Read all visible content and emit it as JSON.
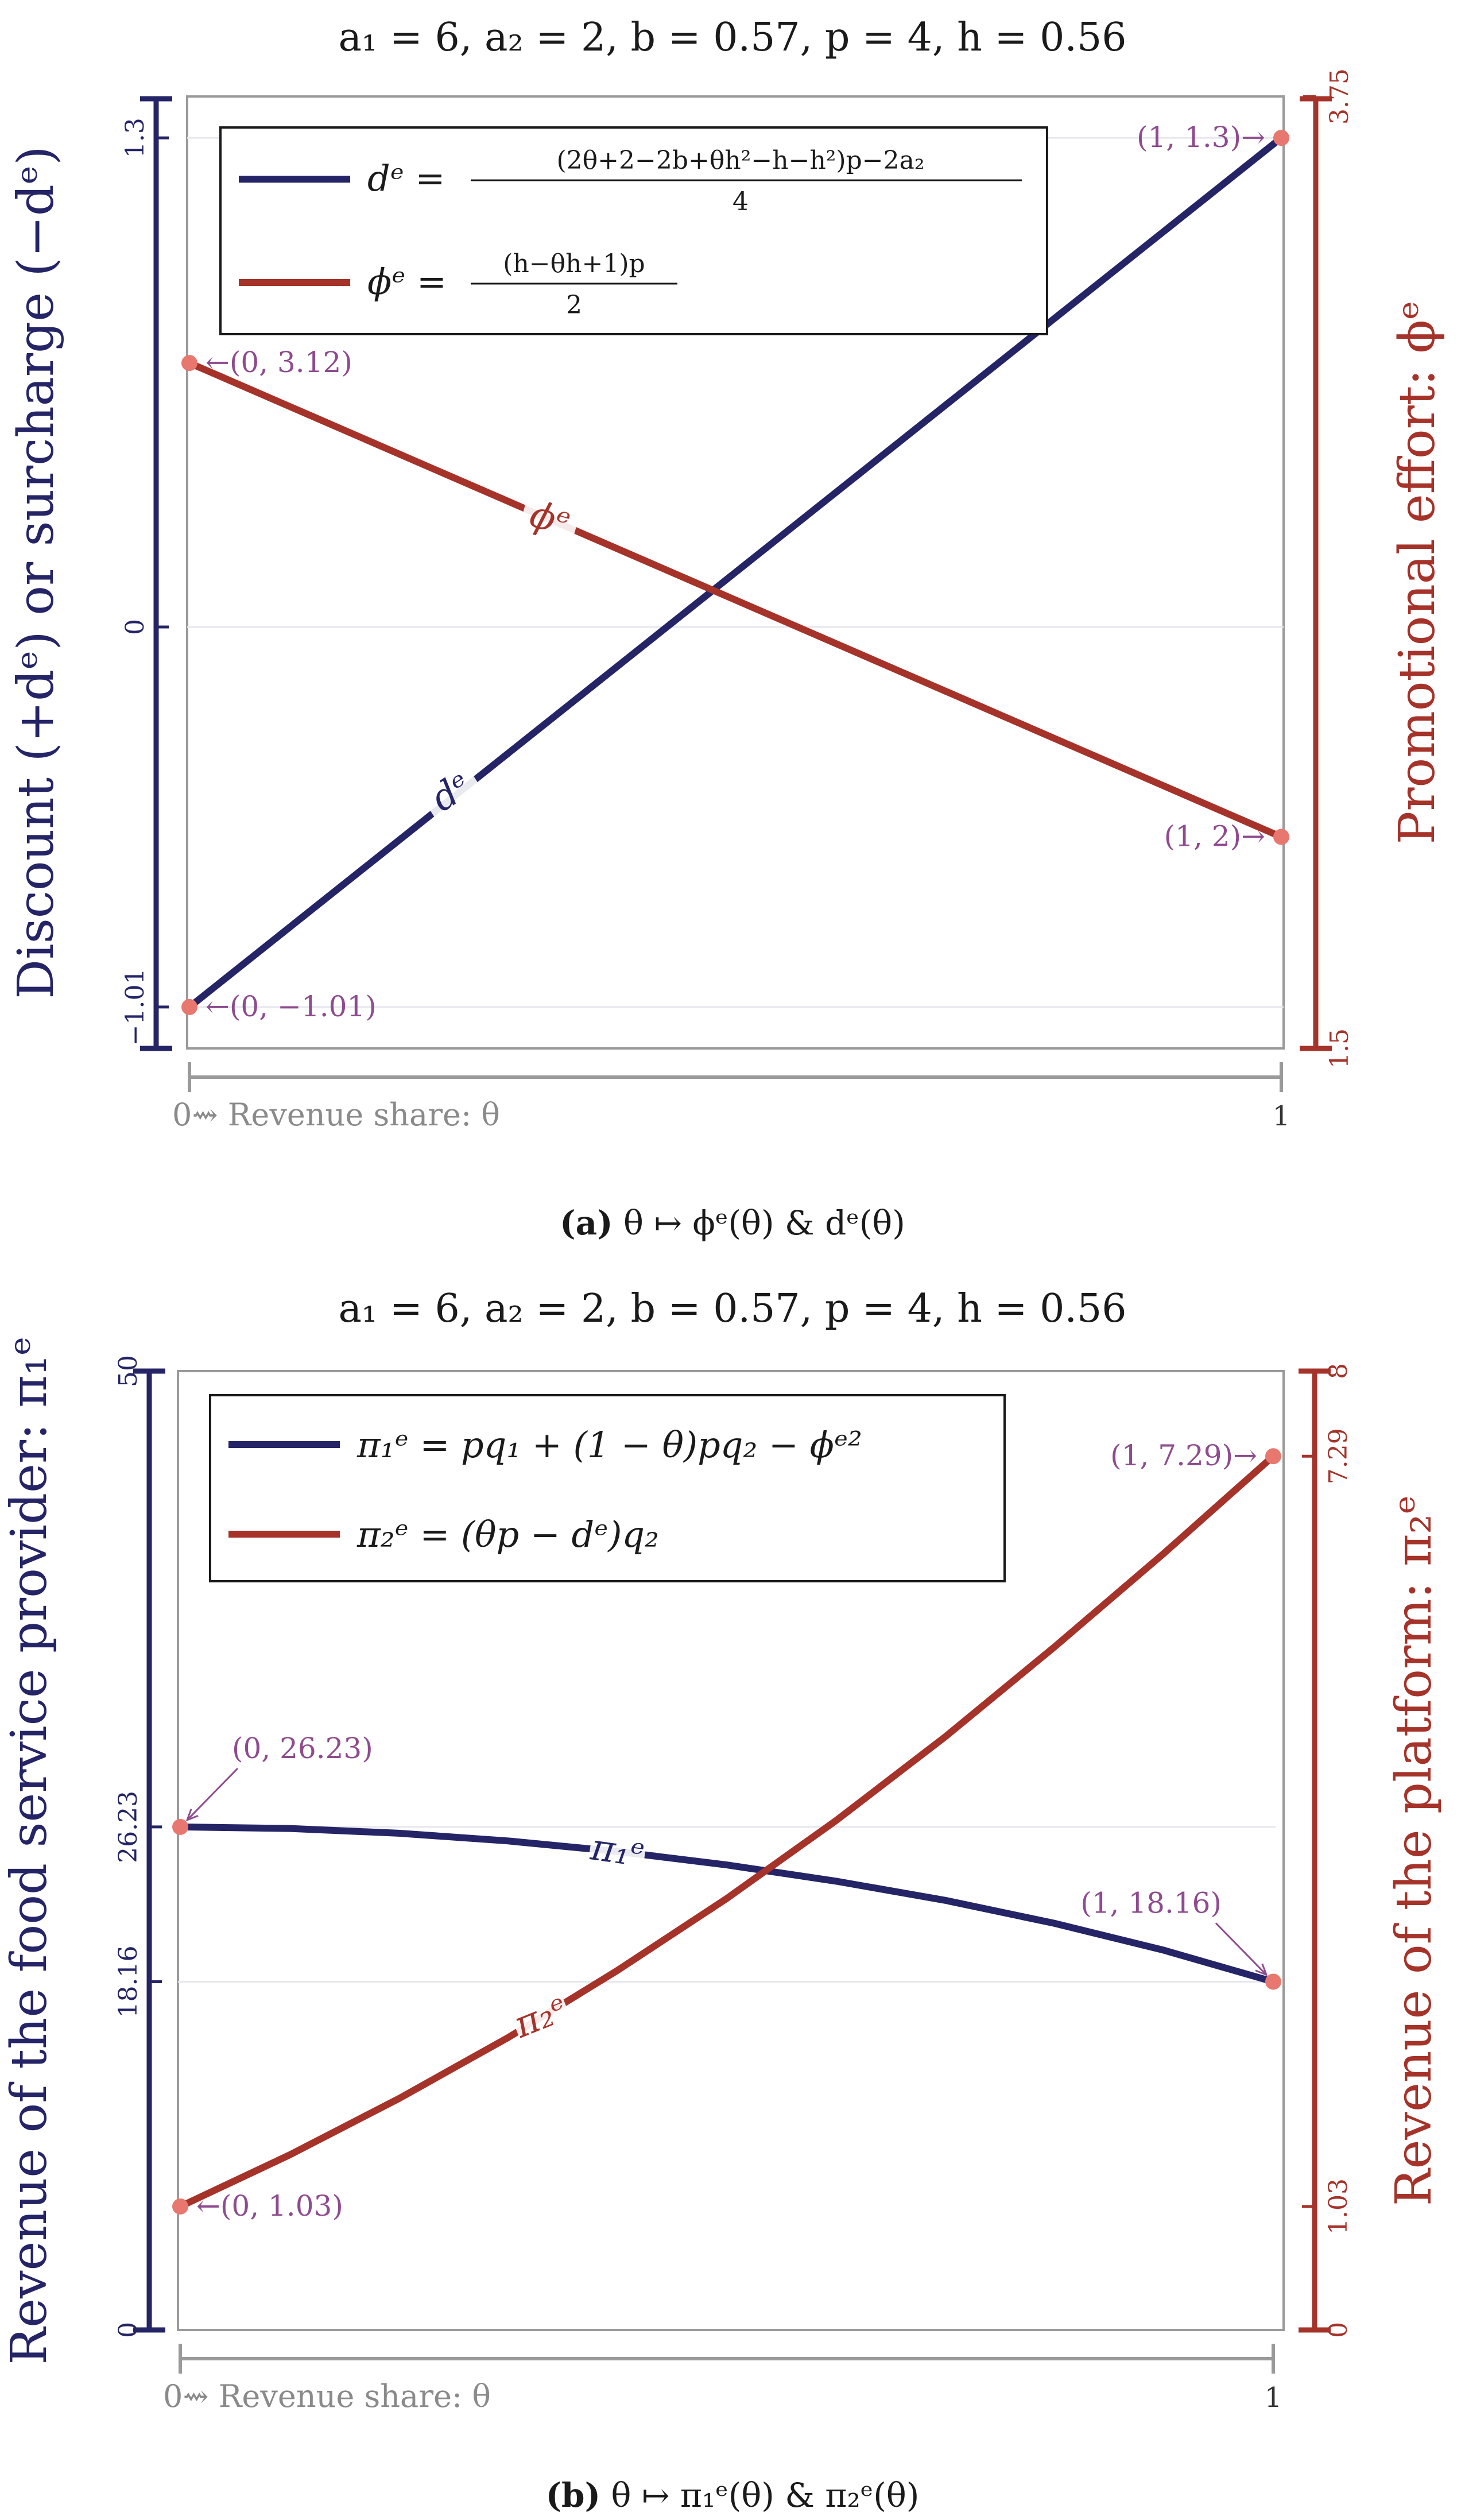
{
  "colors": {
    "navy": "#242466",
    "brick": "#a5332a",
    "annotation": "#8e4b8e",
    "point": "#e8786f",
    "frame": "#9a9a9a",
    "grid": "#e6e6ee"
  },
  "chart_data": [
    {
      "type": "line",
      "title": "a₁ = 6,  a₂ = 2,  b = 0.57,  p = 4,  h = 0.56",
      "caption_label": "(a)",
      "caption_text": " θ ↦ ϕᵉ(θ) & dᵉ(θ)",
      "xlabel": "0⇝ Revenue share: θ",
      "x_ticks": [
        "1"
      ],
      "xlim": [
        0,
        1
      ],
      "ylabel_left": "Discount (+dᵉ) or surcharge (−dᵉ)",
      "ylabel_right": "Promotional effort: ϕᵉ",
      "ylim_left": [
        -1.12,
        1.41
      ],
      "ylim_right": [
        1.5,
        3.75
      ],
      "yticks_left": [
        {
          "value": -1.01,
          "label": "−1.01"
        },
        {
          "value": 0,
          "label": "0"
        },
        {
          "value": 1.3,
          "label": "1.3"
        }
      ],
      "yticks_right": [
        {
          "value": 1.5,
          "label": "1.5"
        },
        {
          "value": 3.75,
          "label": "3.75"
        }
      ],
      "legend_position": "top-left",
      "series": [
        {
          "name": "d",
          "axis": "left",
          "legend": "dᵉ = ((2θ+2−2b+θh²−h−h²)p−2a₂) / 4",
          "legend_num": "(2θ+2−2b+θh²−h−h²)p−2a₂",
          "legend_den": "4",
          "inline_label": "dᵉ",
          "x": [
            0,
            1
          ],
          "y": [
            -1.01,
            1.3
          ]
        },
        {
          "name": "phi",
          "axis": "right",
          "legend": "ϕᵉ = ((h−θh+1)p) / 2",
          "legend_num": "(h−θh+1)p",
          "legend_den": "2",
          "inline_label": "ϕᵉ",
          "x": [
            0,
            1
          ],
          "y": [
            3.12,
            2.0
          ]
        }
      ],
      "annotations": [
        {
          "text": "←(0, 3.12)",
          "x": 0,
          "y": 3.12,
          "axis": "right",
          "side": "right"
        },
        {
          "text": "←(0, −1.01)",
          "x": 0,
          "y": -1.01,
          "axis": "left",
          "side": "right"
        },
        {
          "text": "(1, 1.3)→",
          "x": 1,
          "y": 1.3,
          "axis": "left",
          "side": "left"
        },
        {
          "text": "(1, 2)→",
          "x": 1,
          "y": 2.0,
          "axis": "right",
          "side": "left"
        }
      ]
    },
    {
      "type": "line",
      "title": "a₁ = 6,  a₂ = 2,  b = 0.57,  p = 4,  h = 0.56",
      "caption_label": "(b)",
      "caption_text": " θ ↦ π₁ᵉ(θ) & π₂ᵉ(θ)",
      "xlabel": "0⇝ Revenue share: θ",
      "x_ticks": [
        "1"
      ],
      "xlim": [
        0,
        1
      ],
      "ylabel_left": "Revenue of the food service provider: π₁ᵉ",
      "ylabel_right": "Revenue of the platform: π₂ᵉ",
      "ylim_left": [
        0,
        50
      ],
      "ylim_right": [
        0,
        8
      ],
      "yticks_left": [
        {
          "value": 0,
          "label": "0"
        },
        {
          "value": 18.16,
          "label": "18.16"
        },
        {
          "value": 26.23,
          "label": "26.23"
        },
        {
          "value": 50,
          "label": "50"
        }
      ],
      "yticks_right": [
        {
          "value": 0,
          "label": "0"
        },
        {
          "value": 1.03,
          "label": "1.03"
        },
        {
          "value": 7.29,
          "label": "7.29"
        },
        {
          "value": 8,
          "label": "8"
        }
      ],
      "legend_position": "top-left",
      "series": [
        {
          "name": "pi1",
          "axis": "left",
          "legend": "π₁ᵉ = pq₁ + (1 − θ)pq₂ − ϕᵉ²",
          "inline_label": "π₁ᵉ",
          "x": [
            0,
            0.1,
            0.2,
            0.3,
            0.4,
            0.5,
            0.6,
            0.7,
            0.8,
            0.9,
            1.0
          ],
          "y": [
            26.23,
            26.15,
            25.9,
            25.5,
            24.95,
            24.25,
            23.4,
            22.4,
            21.2,
            19.8,
            18.16
          ]
        },
        {
          "name": "pi2",
          "axis": "right",
          "legend": "π₂ᵉ = (θp − dᵉ)q₂",
          "inline_label": "π₂ᵉ",
          "x": [
            0,
            0.1,
            0.2,
            0.3,
            0.4,
            0.5,
            0.6,
            0.7,
            0.8,
            0.9,
            1.0
          ],
          "y": [
            1.03,
            1.46,
            1.93,
            2.44,
            3.0,
            3.6,
            4.25,
            4.95,
            5.7,
            6.48,
            7.29
          ]
        }
      ],
      "annotations": [
        {
          "text": "(0, 26.23)",
          "x": 0,
          "y": 26.23,
          "axis": "left",
          "side": "above-right"
        },
        {
          "text": "←(0, 1.03)",
          "x": 0,
          "y": 1.03,
          "axis": "right",
          "side": "right"
        },
        {
          "text": "(1, 7.29)→",
          "x": 1,
          "y": 7.29,
          "axis": "right",
          "side": "left"
        },
        {
          "text": "(1, 18.16)",
          "x": 1,
          "y": 18.16,
          "axis": "left",
          "side": "above-left"
        }
      ]
    }
  ]
}
